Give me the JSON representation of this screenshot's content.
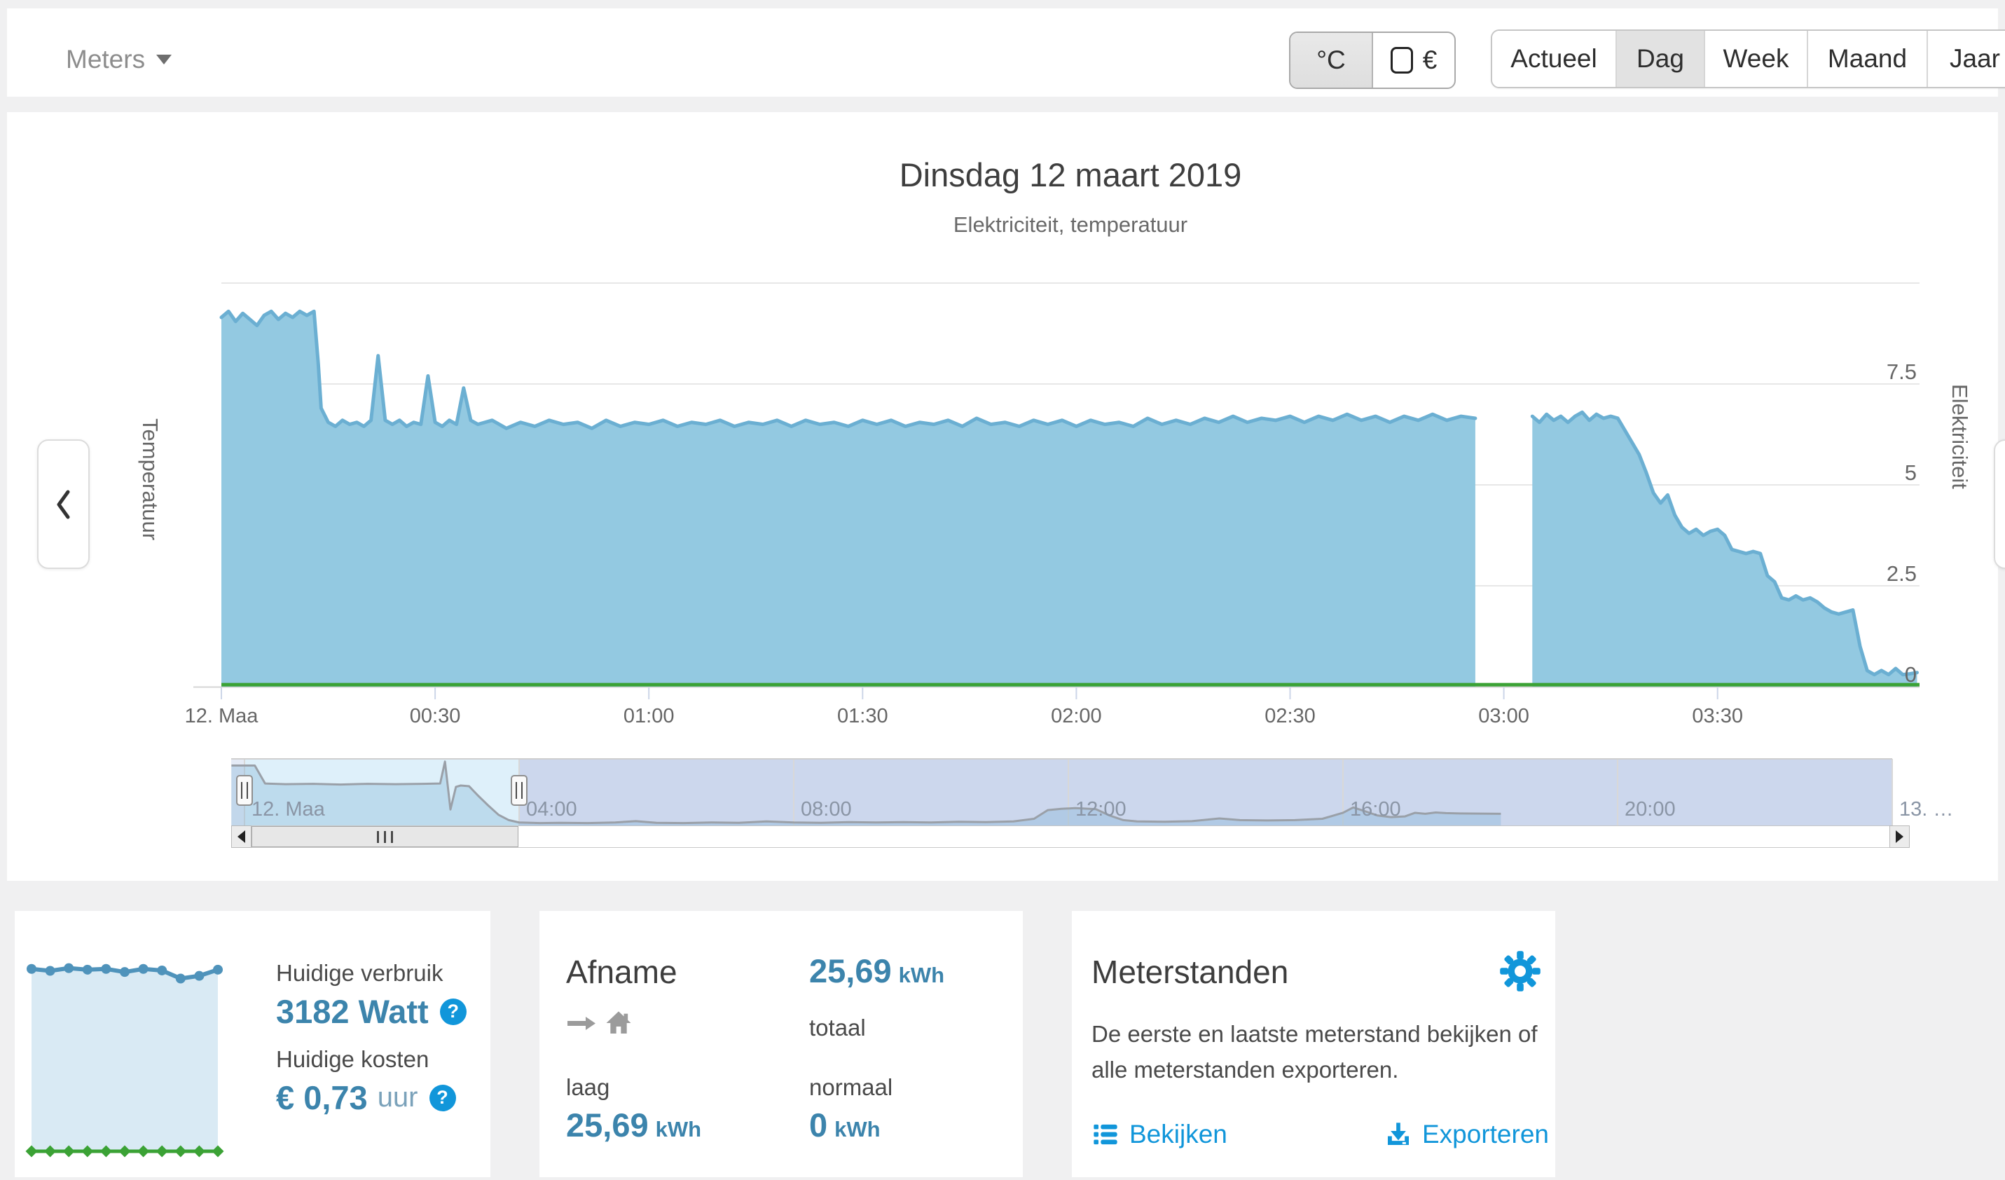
{
  "header": {
    "meters_label": "Meters",
    "unit_toggle": {
      "celsius_label": "°C",
      "euro_label": "€",
      "active": "celsius"
    },
    "range_tabs": [
      {
        "label": "Actueel",
        "active": false
      },
      {
        "label": "Dag",
        "active": true
      },
      {
        "label": "Week",
        "active": false
      },
      {
        "label": "Maand",
        "active": false
      },
      {
        "label": "Jaar",
        "active": false
      }
    ]
  },
  "chart_data": {
    "type": "area",
    "title": "Dinsdag 12 maart 2019",
    "subtitle": "Elektriciteit, temperatuur",
    "legend": "off",
    "grid": "horizontal",
    "y_axis_right": {
      "title": "Elektriciteit",
      "range": [
        0,
        10
      ],
      "ticks": [
        {
          "value": 7.5,
          "label": "7.5"
        },
        {
          "value": 5,
          "label": "5"
        },
        {
          "value": 2.5,
          "label": "2.5"
        },
        {
          "value": 0,
          "label": "0"
        }
      ],
      "top_gridline_value": 10
    },
    "y_axis_left": {
      "title": "Temperatuur",
      "ticks": []
    },
    "x_axis": {
      "unit": "time",
      "range_minutes": [
        0,
        238.5
      ],
      "ticks": [
        {
          "minute": 0,
          "label": "12. Maa"
        },
        {
          "minute": 30,
          "label": "00:30"
        },
        {
          "minute": 60,
          "label": "01:00"
        },
        {
          "minute": 90,
          "label": "01:30"
        },
        {
          "minute": 120,
          "label": "02:00"
        },
        {
          "minute": 150,
          "label": "02:30"
        },
        {
          "minute": 180,
          "label": "03:00"
        },
        {
          "minute": 210,
          "label": "03:30"
        }
      ]
    },
    "series": [
      {
        "name": "Elektriciteit",
        "color": "#6bafd2",
        "fill": "#93c9e1",
        "gap_minutes": [
          176,
          184
        ],
        "segments": [
          [
            [
              0,
              9.15
            ],
            [
              1,
              9.3
            ],
            [
              2,
              9.05
            ],
            [
              3,
              9.25
            ],
            [
              4,
              9.1
            ],
            [
              5,
              8.95
            ],
            [
              6,
              9.2
            ],
            [
              7,
              9.3
            ],
            [
              8,
              9.1
            ],
            [
              9,
              9.25
            ],
            [
              10,
              9.15
            ],
            [
              11,
              9.3
            ],
            [
              12,
              9.2
            ],
            [
              13,
              9.3
            ],
            [
              13.6,
              8.0
            ],
            [
              14,
              6.9
            ],
            [
              15,
              6.55
            ],
            [
              16,
              6.45
            ],
            [
              17,
              6.6
            ],
            [
              18,
              6.5
            ],
            [
              19,
              6.55
            ],
            [
              20,
              6.45
            ],
            [
              21,
              6.6
            ],
            [
              22,
              8.2
            ],
            [
              23,
              6.6
            ],
            [
              24,
              6.5
            ],
            [
              25,
              6.6
            ],
            [
              26,
              6.45
            ],
            [
              27,
              6.55
            ],
            [
              28,
              6.5
            ],
            [
              29,
              7.7
            ],
            [
              30,
              6.55
            ],
            [
              31,
              6.45
            ],
            [
              32,
              6.6
            ],
            [
              33,
              6.5
            ],
            [
              34,
              7.4
            ],
            [
              35,
              6.6
            ],
            [
              36,
              6.5
            ],
            [
              38,
              6.6
            ],
            [
              40,
              6.4
            ],
            [
              42,
              6.55
            ],
            [
              44,
              6.45
            ],
            [
              46,
              6.6
            ],
            [
              48,
              6.5
            ],
            [
              50,
              6.55
            ],
            [
              52,
              6.4
            ],
            [
              54,
              6.6
            ],
            [
              56,
              6.45
            ],
            [
              58,
              6.55
            ],
            [
              60,
              6.5
            ],
            [
              62,
              6.6
            ],
            [
              64,
              6.45
            ],
            [
              66,
              6.55
            ],
            [
              68,
              6.5
            ],
            [
              70,
              6.6
            ],
            [
              72,
              6.45
            ],
            [
              74,
              6.55
            ],
            [
              76,
              6.5
            ],
            [
              78,
              6.6
            ],
            [
              80,
              6.45
            ],
            [
              82,
              6.6
            ],
            [
              84,
              6.5
            ],
            [
              86,
              6.55
            ],
            [
              88,
              6.45
            ],
            [
              90,
              6.6
            ],
            [
              92,
              6.5
            ],
            [
              94,
              6.6
            ],
            [
              96,
              6.45
            ],
            [
              98,
              6.55
            ],
            [
              100,
              6.5
            ],
            [
              102,
              6.6
            ],
            [
              104,
              6.45
            ],
            [
              106,
              6.65
            ],
            [
              108,
              6.5
            ],
            [
              110,
              6.55
            ],
            [
              112,
              6.45
            ],
            [
              114,
              6.6
            ],
            [
              116,
              6.5
            ],
            [
              118,
              6.6
            ],
            [
              120,
              6.45
            ],
            [
              122,
              6.6
            ],
            [
              124,
              6.5
            ],
            [
              126,
              6.55
            ],
            [
              128,
              6.45
            ],
            [
              130,
              6.65
            ],
            [
              132,
              6.5
            ],
            [
              134,
              6.6
            ],
            [
              136,
              6.5
            ],
            [
              138,
              6.65
            ],
            [
              140,
              6.55
            ],
            [
              142,
              6.7
            ],
            [
              144,
              6.55
            ],
            [
              146,
              6.65
            ],
            [
              148,
              6.6
            ],
            [
              150,
              6.7
            ],
            [
              152,
              6.55
            ],
            [
              154,
              6.7
            ],
            [
              156,
              6.6
            ],
            [
              158,
              6.75
            ],
            [
              160,
              6.6
            ],
            [
              162,
              6.7
            ],
            [
              164,
              6.55
            ],
            [
              166,
              6.7
            ],
            [
              168,
              6.6
            ],
            [
              170,
              6.75
            ],
            [
              172,
              6.6
            ],
            [
              174,
              6.7
            ],
            [
              176,
              6.65
            ]
          ],
          [
            [
              184,
              6.7
            ],
            [
              185,
              6.55
            ],
            [
              186,
              6.75
            ],
            [
              187,
              6.6
            ],
            [
              188,
              6.7
            ],
            [
              189,
              6.55
            ],
            [
              190,
              6.7
            ],
            [
              191,
              6.8
            ],
            [
              192,
              6.6
            ],
            [
              193,
              6.75
            ],
            [
              194,
              6.65
            ],
            [
              195,
              6.7
            ],
            [
              196,
              6.65
            ],
            [
              197,
              6.35
            ],
            [
              198,
              6.05
            ],
            [
              199,
              5.75
            ],
            [
              200,
              5.3
            ],
            [
              201,
              4.8
            ],
            [
              202,
              4.55
            ],
            [
              203,
              4.75
            ],
            [
              204,
              4.25
            ],
            [
              205,
              3.95
            ],
            [
              206,
              3.8
            ],
            [
              207,
              3.9
            ],
            [
              208,
              3.75
            ],
            [
              209,
              3.85
            ],
            [
              210,
              3.9
            ],
            [
              211,
              3.75
            ],
            [
              212,
              3.4
            ],
            [
              213,
              3.35
            ],
            [
              214,
              3.3
            ],
            [
              215,
              3.35
            ],
            [
              216,
              3.3
            ],
            [
              217,
              2.75
            ],
            [
              218,
              2.6
            ],
            [
              219,
              2.2
            ],
            [
              220,
              2.15
            ],
            [
              221,
              2.25
            ],
            [
              222,
              2.15
            ],
            [
              223,
              2.2
            ],
            [
              224,
              2.1
            ],
            [
              225,
              1.95
            ],
            [
              226,
              1.85
            ],
            [
              227,
              1.8
            ],
            [
              228,
              1.85
            ],
            [
              229,
              1.9
            ],
            [
              230,
              1.0
            ],
            [
              231,
              0.4
            ],
            [
              232,
              0.3
            ],
            [
              233,
              0.4
            ],
            [
              234,
              0.3
            ],
            [
              235,
              0.45
            ],
            [
              236,
              0.3
            ],
            [
              237,
              0.32
            ],
            [
              238,
              0.35
            ]
          ]
        ]
      },
      {
        "name": "Temperatuur",
        "color": "#3ba235",
        "flat_value": 0.05
      }
    ],
    "navigator": {
      "range_hours": [
        -0.19,
        23.6
      ],
      "selection_hours": [
        0,
        4
      ],
      "x_ticks": [
        {
          "hour": 0,
          "label": "12. Maa"
        },
        {
          "hour": 4,
          "label": "04:00"
        },
        {
          "hour": 8,
          "label": "08:00"
        },
        {
          "hour": 12,
          "label": "12:00"
        },
        {
          "hour": 16,
          "label": "16:00"
        },
        {
          "hour": 20,
          "label": "20:00"
        },
        {
          "hour": 24,
          "label": "13. …"
        }
      ],
      "series": [
        [
          -0.19,
          9.0
        ],
        [
          0.15,
          9.0
        ],
        [
          0.3,
          6.3
        ],
        [
          0.6,
          6.2
        ],
        [
          1,
          6.25
        ],
        [
          1.4,
          6.15
        ],
        [
          1.8,
          6.25
        ],
        [
          2.2,
          6.2
        ],
        [
          2.6,
          6.25
        ],
        [
          2.85,
          6.3
        ],
        [
          2.92,
          9.6
        ],
        [
          3.0,
          2.4
        ],
        [
          3.08,
          5.8
        ],
        [
          3.15,
          6.0
        ],
        [
          3.27,
          5.9
        ],
        [
          3.4,
          4.5
        ],
        [
          3.55,
          3.0
        ],
        [
          3.7,
          1.6
        ],
        [
          3.85,
          0.8
        ],
        [
          4,
          0.45
        ],
        [
          4.3,
          0.35
        ],
        [
          4.6,
          0.4
        ],
        [
          5,
          0.35
        ],
        [
          5.4,
          0.45
        ],
        [
          5.7,
          0.65
        ],
        [
          6,
          0.4
        ],
        [
          6.4,
          0.35
        ],
        [
          6.8,
          0.45
        ],
        [
          7.2,
          0.4
        ],
        [
          7.6,
          0.6
        ],
        [
          8,
          0.45
        ],
        [
          8.4,
          0.4
        ],
        [
          8.8,
          0.5
        ],
        [
          9.2,
          0.45
        ],
        [
          9.6,
          0.5
        ],
        [
          10,
          0.45
        ],
        [
          10.4,
          0.55
        ],
        [
          10.8,
          0.5
        ],
        [
          11.2,
          0.6
        ],
        [
          11.5,
          1.0
        ],
        [
          11.7,
          2.3
        ],
        [
          11.9,
          2.5
        ],
        [
          12.1,
          2.6
        ],
        [
          12.4,
          2.45
        ],
        [
          12.6,
          1.5
        ],
        [
          12.8,
          0.8
        ],
        [
          13,
          0.6
        ],
        [
          13.4,
          0.55
        ],
        [
          13.8,
          0.65
        ],
        [
          14.2,
          1.05
        ],
        [
          14.5,
          0.8
        ],
        [
          14.9,
          0.75
        ],
        [
          15.3,
          0.8
        ],
        [
          15.7,
          1.0
        ],
        [
          16,
          1.9
        ],
        [
          16.15,
          2.7
        ],
        [
          16.3,
          2.2
        ],
        [
          16.5,
          1.5
        ],
        [
          16.7,
          1.25
        ],
        [
          16.9,
          1.35
        ],
        [
          17.05,
          1.9
        ],
        [
          17.2,
          1.75
        ],
        [
          17.35,
          1.95
        ],
        [
          17.5,
          1.85
        ],
        [
          17.7,
          1.8
        ],
        [
          18.3,
          1.75
        ]
      ]
    },
    "current_usage_sparkline": {
      "blue": [
        9.3,
        9.25,
        9.32,
        9.28,
        9.3,
        9.22,
        9.3,
        9.26,
        9.05,
        9.12,
        9.28
      ],
      "green_flat": 0.2
    }
  },
  "cards": {
    "current": {
      "usage_label": "Huidige verbruik",
      "usage_value": "3182 Watt",
      "cost_label": "Huidige kosten",
      "cost_value": "€ 0,73",
      "cost_unit": "uur",
      "help_glyph": "?"
    },
    "afname": {
      "title": "Afname",
      "total_value": "25,69",
      "total_unit": "kWh",
      "total_label": "totaal",
      "low_label": "laag",
      "low_value": "25,69",
      "low_unit": "kWh",
      "normal_label": "normaal",
      "normal_value": "0",
      "normal_unit": "kWh"
    },
    "meterstanden": {
      "title": "Meterstanden",
      "description": "De eerste en laatste meterstand bekijken of alle meterstanden exporteren.",
      "view_link": "Bekijken",
      "export_link": "Exporteren"
    }
  }
}
